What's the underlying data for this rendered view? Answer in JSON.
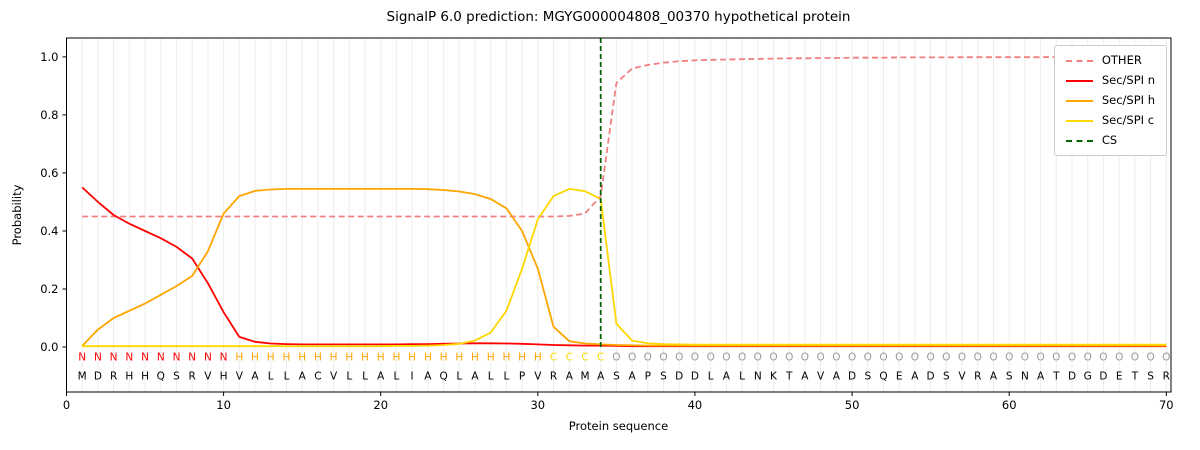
{
  "chart_data": {
    "type": "line",
    "title": "SignalP 6.0 prediction: MGYG000004808_00370 hypothetical protein",
    "xlabel": "Protein sequence",
    "ylabel": "Probability",
    "axes": {
      "xlim": [
        0,
        70.3
      ],
      "ylim": [
        0,
        1.0
      ],
      "ylim_display": [
        -0.155,
        1.065
      ],
      "xticks": [
        0,
        10,
        20,
        30,
        40,
        50,
        60,
        70
      ],
      "yticks": [
        "0.0",
        "0.2",
        "0.4",
        "0.6",
        "0.8",
        "1.0"
      ],
      "grid": "vertical-line-per-residue"
    },
    "positions": {
      "start": 1,
      "end": 70
    },
    "sequence": "MDRHHQSRVHVALLACVLLALIAQLALLPVRAMASAPSDDLALNKTAVADSQEADSVRASNATDGDETSR",
    "region_labels": "NNNNNNNNNNHHHHHHHHHHHHHHHHHHHHCCCCOOOOOOOOOOOOOOOOOOOOOOOOOOOOOOOOOOOO",
    "region_colors": {
      "N": "#ff0000",
      "H": "#ffa500",
      "C": "#ffd700",
      "O": "#999999"
    },
    "cs": {
      "label": "CS",
      "position": 34,
      "color": "#006400",
      "style": "dashed"
    },
    "series": [
      {
        "name": "OTHER",
        "color": "#f08080",
        "dash": "6,3.5",
        "values": [
          0.45,
          0.45,
          0.45,
          0.45,
          0.45,
          0.45,
          0.45,
          0.45,
          0.45,
          0.45,
          0.45,
          0.45,
          0.45,
          0.45,
          0.45,
          0.45,
          0.45,
          0.45,
          0.45,
          0.45,
          0.45,
          0.45,
          0.45,
          0.45,
          0.45,
          0.45,
          0.45,
          0.45,
          0.45,
          0.45,
          0.45,
          0.452,
          0.46,
          0.52,
          0.91,
          0.96,
          0.972,
          0.98,
          0.985,
          0.988,
          0.99,
          0.991,
          0.992,
          0.993,
          0.994,
          0.995,
          0.995,
          0.996,
          0.996,
          0.997,
          0.997,
          0.997,
          0.998,
          0.998,
          0.998,
          0.998,
          0.999,
          0.999,
          0.999,
          0.999,
          0.999,
          0.999,
          1.0,
          1.0,
          1.0,
          1.0,
          1.0,
          1.0,
          1.0,
          1.0
        ]
      },
      {
        "name": "Sec/SPI n",
        "color": "#ff0000",
        "dash": null,
        "values": [
          0.55,
          0.5,
          0.455,
          0.425,
          0.4,
          0.375,
          0.345,
          0.305,
          0.22,
          0.12,
          0.035,
          0.018,
          0.012,
          0.01,
          0.009,
          0.009,
          0.009,
          0.009,
          0.009,
          0.009,
          0.009,
          0.01,
          0.01,
          0.011,
          0.012,
          0.013,
          0.013,
          0.012,
          0.011,
          0.009,
          0.007,
          0.006,
          0.005,
          0.005,
          0.004,
          0.003,
          0.003,
          0.003,
          0.003,
          0.003,
          0.003,
          0.003,
          0.003,
          0.003,
          0.003,
          0.003,
          0.003,
          0.003,
          0.003,
          0.003,
          0.003,
          0.003,
          0.003,
          0.003,
          0.003,
          0.003,
          0.003,
          0.003,
          0.003,
          0.003,
          0.003,
          0.003,
          0.003,
          0.003,
          0.003,
          0.003,
          0.003,
          0.003,
          0.003,
          0.003
        ]
      },
      {
        "name": "Sec/SPI h",
        "color": "#ffa500",
        "dash": null,
        "values": [
          0.004,
          0.06,
          0.1,
          0.125,
          0.15,
          0.18,
          0.21,
          0.245,
          0.33,
          0.46,
          0.52,
          0.538,
          0.543,
          0.545,
          0.545,
          0.545,
          0.545,
          0.545,
          0.545,
          0.545,
          0.545,
          0.545,
          0.544,
          0.541,
          0.536,
          0.527,
          0.51,
          0.478,
          0.4,
          0.27,
          0.07,
          0.02,
          0.012,
          0.009,
          0.007,
          0.006,
          0.005,
          0.005,
          0.005,
          0.005,
          0.005,
          0.005,
          0.005,
          0.005,
          0.005,
          0.005,
          0.005,
          0.005,
          0.005,
          0.005,
          0.005,
          0.005,
          0.005,
          0.005,
          0.005,
          0.005,
          0.005,
          0.005,
          0.005,
          0.005,
          0.005,
          0.005,
          0.005,
          0.005,
          0.005,
          0.005,
          0.005,
          0.005,
          0.005,
          0.005
        ]
      },
      {
        "name": "Sec/SPI c",
        "color": "#ffd700",
        "dash": null,
        "values": [
          0.003,
          0.003,
          0.003,
          0.003,
          0.003,
          0.003,
          0.003,
          0.003,
          0.003,
          0.003,
          0.003,
          0.003,
          0.003,
          0.003,
          0.003,
          0.003,
          0.003,
          0.003,
          0.003,
          0.003,
          0.004,
          0.004,
          0.005,
          0.007,
          0.011,
          0.022,
          0.05,
          0.125,
          0.27,
          0.44,
          0.52,
          0.545,
          0.537,
          0.51,
          0.08,
          0.022,
          0.013,
          0.01,
          0.009,
          0.008,
          0.008,
          0.008,
          0.008,
          0.008,
          0.008,
          0.008,
          0.008,
          0.008,
          0.008,
          0.008,
          0.008,
          0.008,
          0.008,
          0.008,
          0.008,
          0.008,
          0.008,
          0.008,
          0.008,
          0.008,
          0.008,
          0.008,
          0.008,
          0.008,
          0.008,
          0.008,
          0.008,
          0.008,
          0.008,
          0.008
        ]
      }
    ],
    "legend": {
      "position": "upper-right",
      "entries": [
        {
          "label": "OTHER",
          "color": "#f08080",
          "dashed": true
        },
        {
          "label": "Sec/SPI n",
          "color": "#ff0000",
          "dashed": false
        },
        {
          "label": "Sec/SPI h",
          "color": "#ffa500",
          "dashed": false
        },
        {
          "label": "Sec/SPI c",
          "color": "#ffd700",
          "dashed": false
        },
        {
          "label": "CS",
          "color": "#006400",
          "dashed": true
        }
      ]
    },
    "style": {
      "grid_color": "#ececec",
      "background": "#ffffff",
      "sequence_color": "#000000",
      "axis_color": "#000000"
    }
  }
}
